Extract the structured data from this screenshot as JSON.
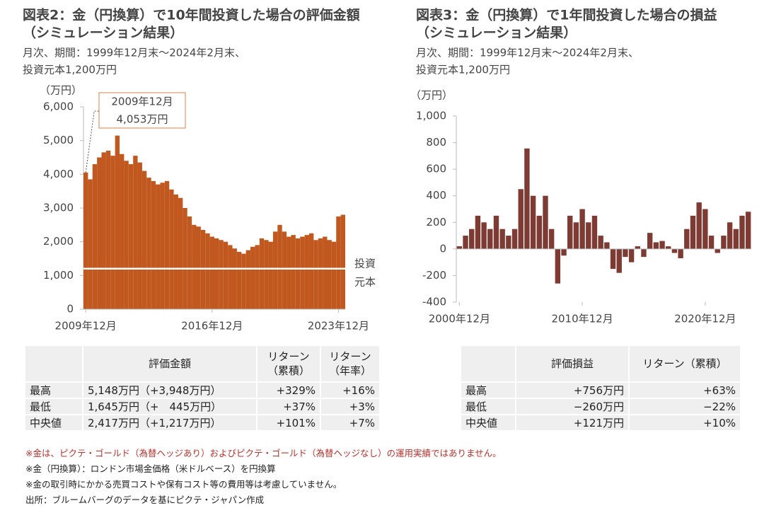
{
  "chart_data": [
    {
      "type": "bar",
      "title": [
        "図表2：金（円換算）で10年間投資した場合の評価金額",
        "（シミュレーション結果）"
      ],
      "subtitle": [
        "月次、期間：1999年12月末～2024年2月末、",
        "投資元本1,200万円"
      ],
      "y_label": "（万円）",
      "color": "#c0581f",
      "categories": [
        "2009年12月",
        null,
        null,
        null,
        null,
        null,
        null,
        null,
        null,
        null,
        null,
        null,
        null,
        null,
        null,
        null,
        null,
        null,
        null,
        null,
        null,
        null,
        null,
        null,
        null,
        null,
        null,
        null,
        "2016年12月",
        null,
        null,
        null,
        null,
        null,
        null,
        null,
        null,
        null,
        null,
        null,
        null,
        null,
        null,
        null,
        null,
        null,
        null,
        null,
        null,
        null,
        null,
        null,
        null,
        null,
        null,
        null,
        "2023年12月",
        null
      ],
      "values": [
        4053,
        3850,
        4300,
        4500,
        4650,
        4700,
        4550,
        5148,
        4600,
        4400,
        4300,
        4550,
        4350,
        4100,
        3900,
        3800,
        3700,
        3750,
        3800,
        3550,
        3400,
        3300,
        3000,
        2750,
        2500,
        2450,
        2350,
        2250,
        2150,
        2100,
        2050,
        2000,
        1900,
        1800,
        1700,
        1645,
        1750,
        1850,
        1900,
        2100,
        2050,
        2000,
        2300,
        2500,
        2300,
        2150,
        2200,
        2100,
        2150,
        2200,
        2250,
        2050,
        2100,
        2150,
        2050,
        2000,
        2750,
        2800
      ],
      "ylim": [
        0,
        6000
      ],
      "yticks": [
        0,
        {
          "value": 1000,
          "label": "1,000"
        },
        {
          "value": 2000,
          "label": "2,000"
        },
        {
          "value": 3000,
          "label": "3,000"
        },
        {
          "value": 4000,
          "label": "4,000"
        },
        {
          "value": 5000,
          "label": "5,000"
        },
        {
          "value": 6000,
          "label": "6,000"
        }
      ],
      "reference_line": {
        "value": 1200,
        "label": [
          "投資",
          "元本"
        ]
      },
      "annotation": [
        "2009年12月",
        "4,053万円"
      ]
    },
    {
      "type": "bar",
      "title": [
        "図表3：金（円換算）で1年間投資した場合の損益",
        "（シミュレーション結果）"
      ],
      "subtitle": [
        "月次、期間：1999年12月末～2024年2月末、",
        "投資元本1,200万円"
      ],
      "y_label": "（万円）",
      "color": "#7d3b33",
      "categories": [
        "2000年12月",
        null,
        null,
        null,
        null,
        null,
        null,
        null,
        null,
        null,
        null,
        null,
        null,
        null,
        null,
        null,
        null,
        null,
        null,
        null,
        "2010年12月",
        null,
        null,
        null,
        null,
        null,
        null,
        null,
        null,
        null,
        null,
        null,
        null,
        null,
        null,
        null,
        null,
        null,
        null,
        null,
        "2020年12月",
        null,
        null,
        null,
        null,
        null,
        null,
        null
      ],
      "values": [
        20,
        100,
        150,
        250,
        200,
        150,
        250,
        150,
        100,
        150,
        450,
        756,
        400,
        250,
        400,
        150,
        -260,
        -50,
        250,
        200,
        300,
        200,
        250,
        100,
        50,
        -150,
        -180,
        -60,
        -100,
        20,
        -60,
        121,
        50,
        60,
        20,
        -30,
        -70,
        150,
        250,
        350,
        300,
        100,
        -30,
        100,
        200,
        150,
        250,
        280
      ],
      "ylim": [
        -400,
        1000
      ],
      "yticks": [
        -400,
        -200,
        0,
        200,
        400,
        600,
        800,
        {
          "value": 1000,
          "label": "1,000"
        }
      ]
    }
  ],
  "tables": [
    {
      "header": [
        "評価金額",
        "リターン\n（累積）",
        "リターン\n（年率）"
      ],
      "rows": [
        [
          "最高",
          "5,148万円（+3,948万円）",
          "+329%",
          "+16%"
        ],
        [
          "最低",
          "1,645万円（+　445万円）",
          "+37%",
          "+3%"
        ],
        [
          "中央値",
          "2,417万円（+1,217万円）",
          "+101%",
          "+7%"
        ]
      ]
    },
    {
      "header": [
        "評価損益",
        "リターン（累積）"
      ],
      "rows": [
        [
          "最高",
          "+756万円",
          "+63%"
        ],
        [
          "最低",
          "−260万円",
          "−22%"
        ],
        [
          "中央値",
          "+121万円",
          "+10%"
        ]
      ]
    }
  ],
  "notes": [
    "※金は、ピクテ・ゴールド（為替ヘッジあり）およびピクテ・ゴールド（為替ヘッジなし）の運用実績ではありません。",
    "※金（円換算）：ロンドン市場金価格（米ドルベース）を円換算",
    "※金の取引時にかかる売買コストや保有コスト等の費用等は考慮していません。",
    "出所：ブルームバーグのデータを基にピクテ・ジャパン作成"
  ]
}
